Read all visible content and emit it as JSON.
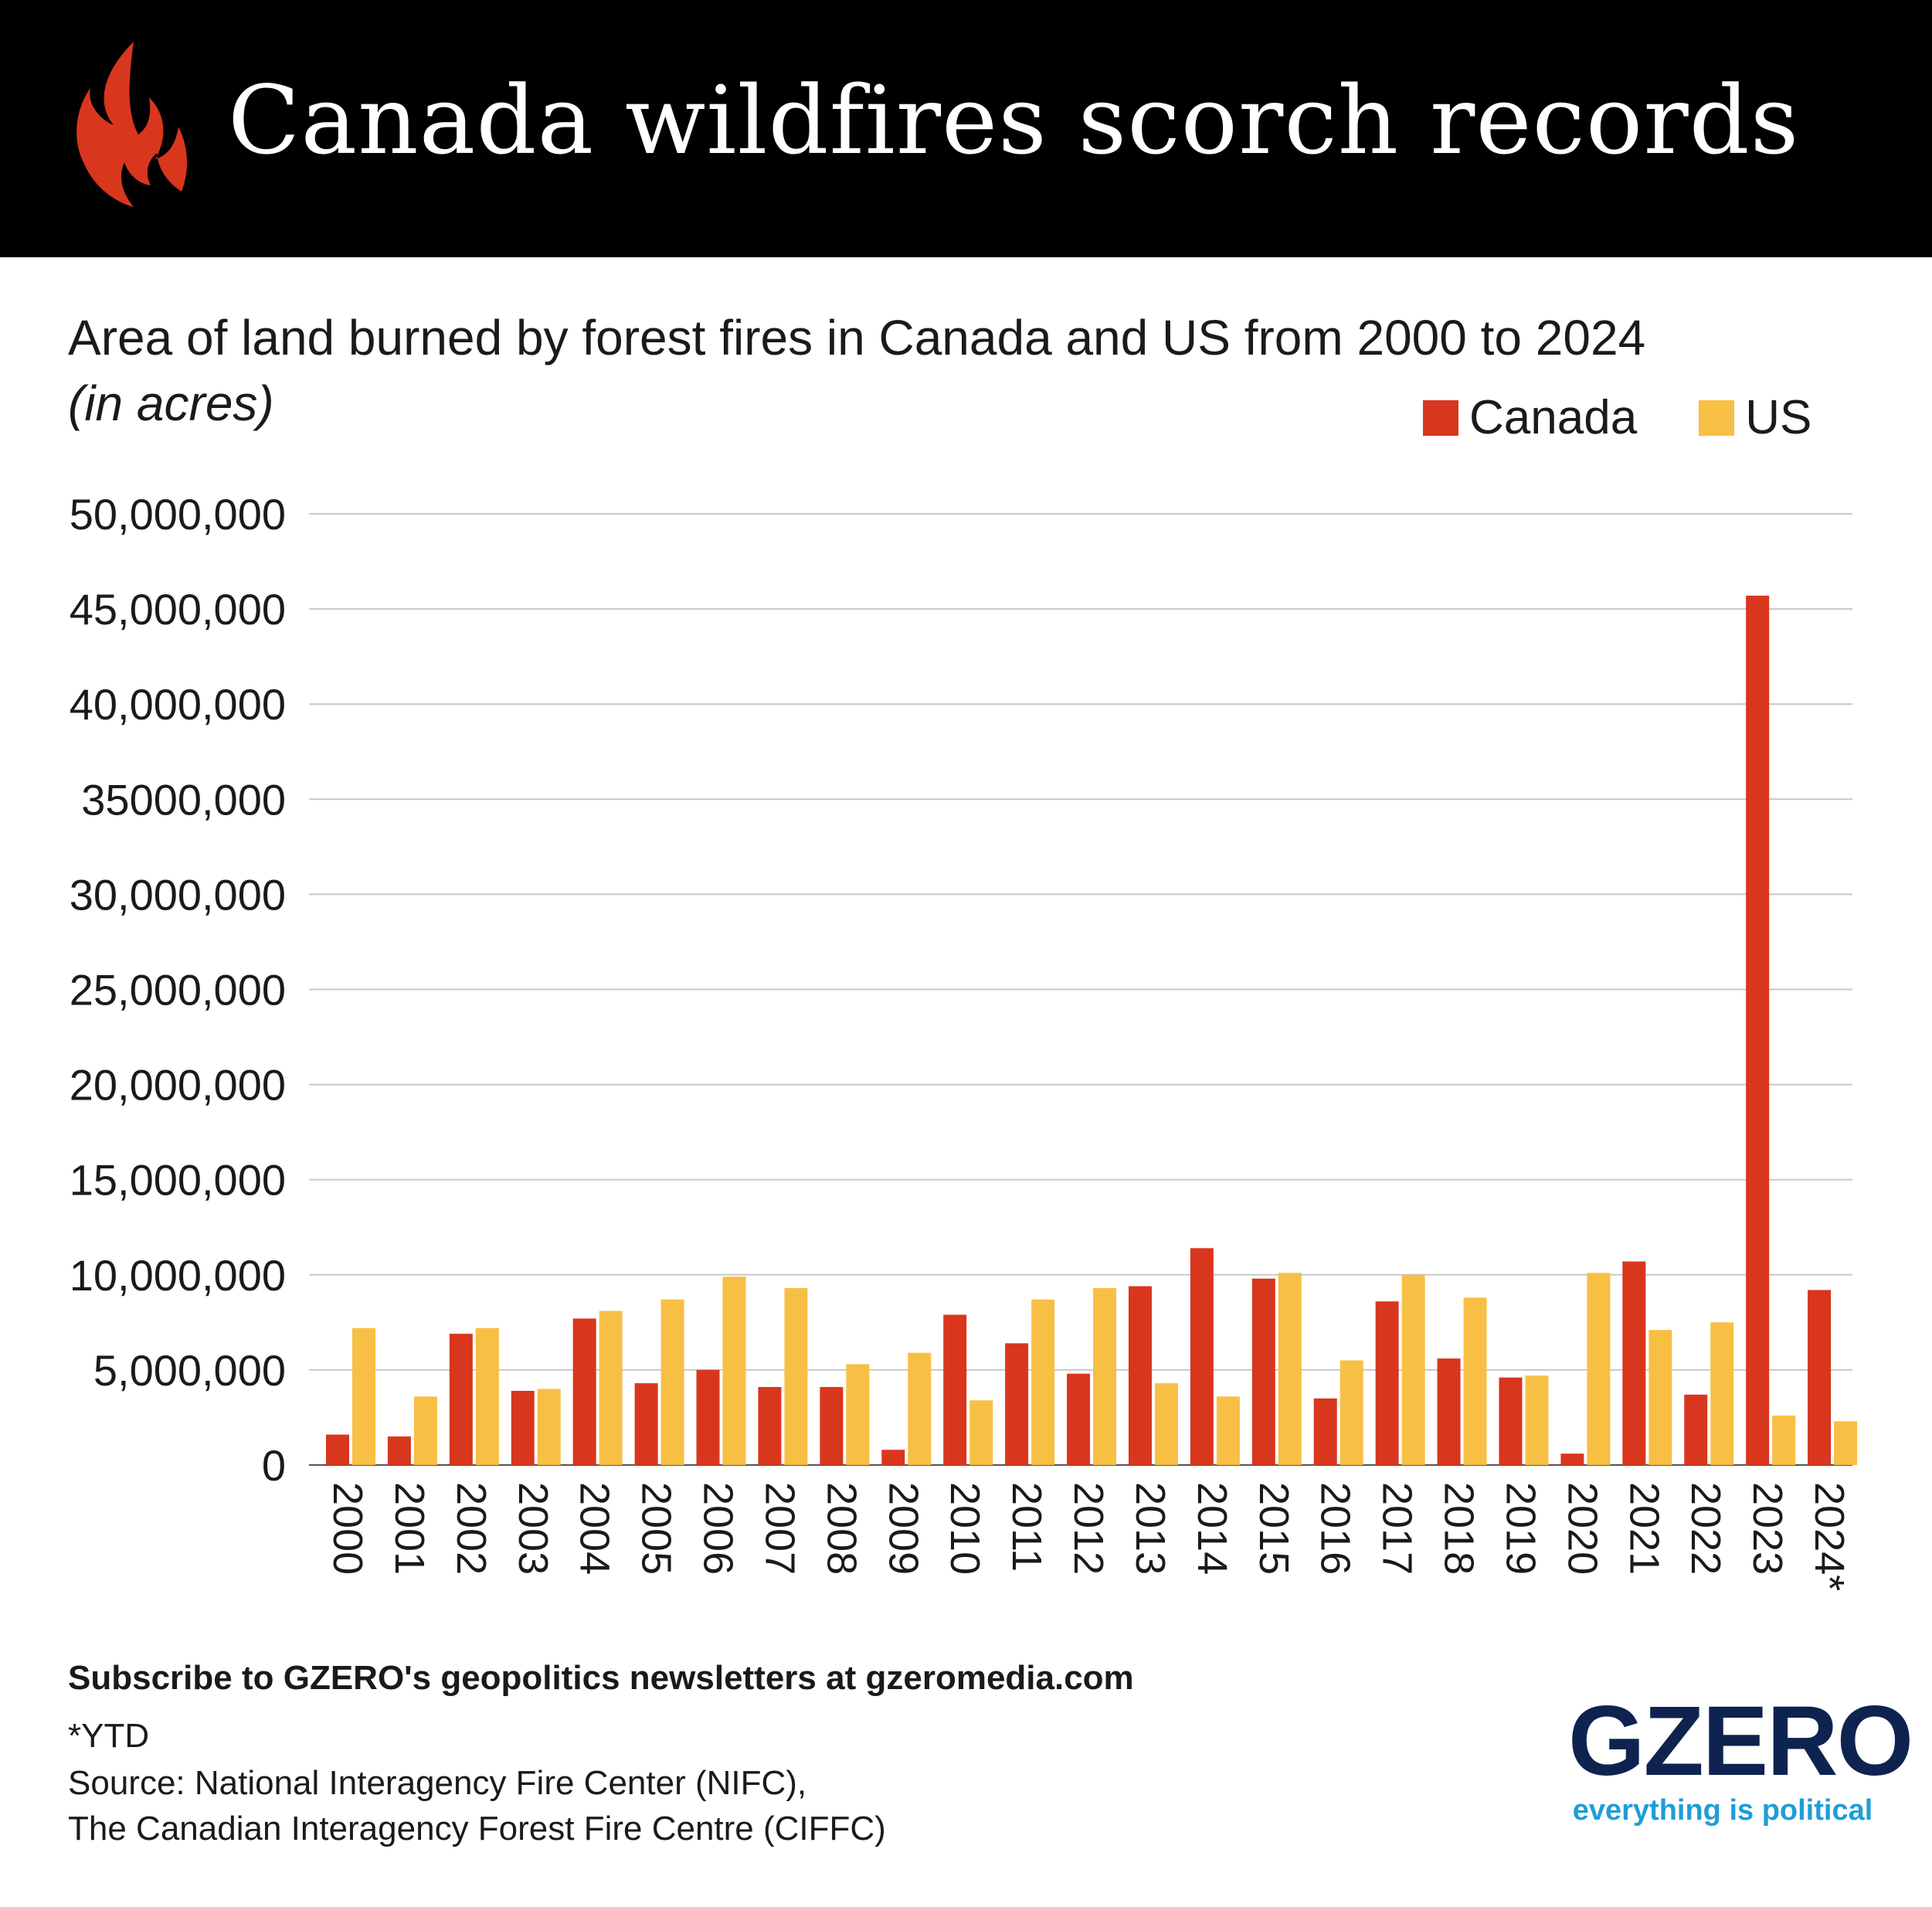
{
  "header": {
    "title": "Canada wildfires scorch records",
    "icon": "flame-icon"
  },
  "subtitle": "Area of land burned by forest fires in Canada and US from 2000 to 2024",
  "unit": "(in acres)",
  "colors": {
    "canada": "#d9361e",
    "us": "#f8bf45",
    "header_bg": "#000000",
    "flame": "#d9361e",
    "logo_navy": "#0f2350",
    "logo_blue": "#1e9ed6"
  },
  "chart_data": {
    "type": "bar",
    "title": "Area of land burned by forest fires in Canada and US from 2000 to 2024",
    "ylabel": "(in acres)",
    "xlabel": "",
    "categories": [
      "2000",
      "2001",
      "2002",
      "2003",
      "2004",
      "2005",
      "2006",
      "2007",
      "2008",
      "2009",
      "2010",
      "2011",
      "2012",
      "2013",
      "2014",
      "2015",
      "2016",
      "2017",
      "2018",
      "2019",
      "2020",
      "2021",
      "2022",
      "2023",
      "2024*"
    ],
    "series": [
      {
        "name": "Canada",
        "values": [
          1600000,
          1500000,
          6900000,
          3900000,
          7700000,
          4300000,
          5000000,
          4100000,
          4100000,
          800000,
          7900000,
          6400000,
          4800000,
          9400000,
          11400000,
          9800000,
          3500000,
          8600000,
          5600000,
          4600000,
          600000,
          10700000,
          3700000,
          45700000,
          9200000
        ]
      },
      {
        "name": "US",
        "values": [
          7200000,
          3600000,
          7200000,
          4000000,
          8100000,
          8700000,
          9900000,
          9300000,
          5300000,
          5900000,
          3400000,
          8700000,
          9300000,
          4300000,
          3600000,
          10100000,
          5500000,
          10000000,
          8800000,
          4700000,
          10100000,
          7100000,
          7500000,
          2600000,
          2300000
        ]
      }
    ],
    "yticks": [
      0,
      5000000,
      10000000,
      15000000,
      20000000,
      25000000,
      30000000,
      35000000,
      40000000,
      45000000,
      50000000
    ],
    "ytick_labels": [
      "0",
      "5,000,000",
      "10,000,000",
      "15,000,000",
      "20,000,000",
      "25,000,000",
      "30,000,000",
      "35000,000",
      "40,000,000",
      "45,000,000",
      "50,000,000"
    ],
    "ylim": [
      0,
      50000000
    ],
    "grid": true,
    "legend_position": "top-right"
  },
  "legend": {
    "canada_label": "Canada",
    "us_label": "US"
  },
  "footer": {
    "cta": "Subscribe to GZERO's geopolitics newsletters at gzeromedia.com",
    "footnote": "*YTD",
    "source_line1": "Source: National Interagency Fire Center (NIFC),",
    "source_line2": "The Canadian Interagency Forest Fire Centre (CIFFC)"
  },
  "logo": {
    "brand": "GZERO",
    "tagline": "everything is political"
  }
}
